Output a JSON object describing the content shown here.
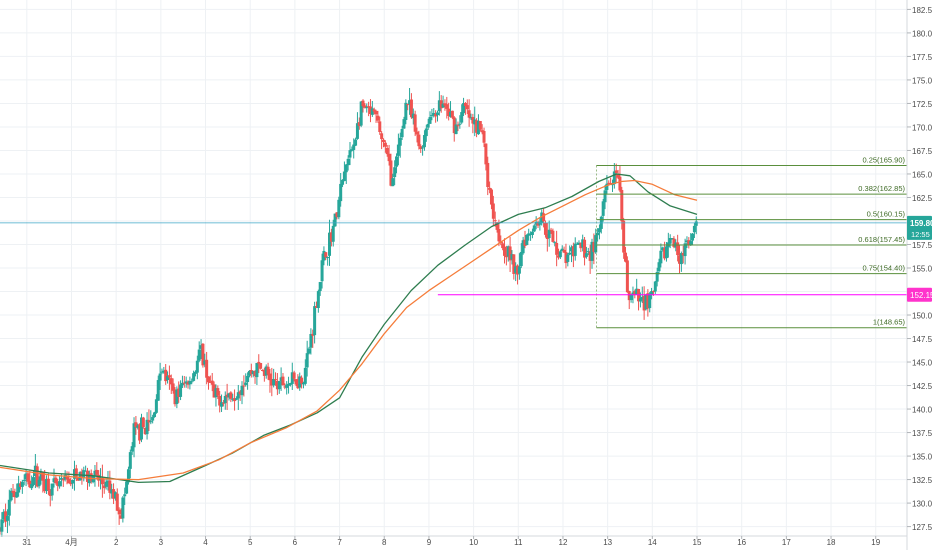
{
  "colors": {
    "grid": "#eef1f4",
    "up": "#26a69a",
    "down": "#ef5350",
    "axis_text": "#4a4a4a",
    "ma_fast": "#f57c3a",
    "ma_slow": "#2e7d4f",
    "fib": "#5a8f3c",
    "price_line": "#3fa7c7",
    "price_badge": "#26a69a",
    "level_line": "#ff00ff",
    "level_badge": "#ff33cc"
  },
  "chart_data": {
    "type": "candlestick",
    "y_range": [
      126.5,
      183.5
    ],
    "y_ticks": [
      "127.50",
      "130.00",
      "132.50",
      "135.00",
      "137.50",
      "140.00",
      "142.50",
      "145.00",
      "147.50",
      "150.00",
      "152.50",
      "155.00",
      "157.50",
      "160.00",
      "162.50",
      "165.00",
      "167.50",
      "170.00",
      "172.50",
      "175.00",
      "177.50",
      "180.00",
      "182.50"
    ],
    "x_range": [
      -0.6,
      19.7
    ],
    "x_ticks": [
      {
        "label": "31",
        "x": 0
      },
      {
        "label": "4月",
        "x": 1
      },
      {
        "label": "2",
        "x": 2
      },
      {
        "label": "3",
        "x": 3
      },
      {
        "label": "4",
        "x": 4
      },
      {
        "label": "5",
        "x": 5
      },
      {
        "label": "6",
        "x": 6
      },
      {
        "label": "7",
        "x": 7
      },
      {
        "label": "8",
        "x": 8
      },
      {
        "label": "9",
        "x": 9
      },
      {
        "label": "10",
        "x": 10
      },
      {
        "label": "11",
        "x": 11
      },
      {
        "label": "12",
        "x": 12
      },
      {
        "label": "13",
        "x": 13
      },
      {
        "label": "14",
        "x": 14
      },
      {
        "label": "15",
        "x": 15
      },
      {
        "label": "16",
        "x": 16
      },
      {
        "label": "17",
        "x": 17
      },
      {
        "label": "18",
        "x": 18
      },
      {
        "label": "19",
        "x": 19
      }
    ],
    "price_path": [
      [
        -0.6,
        127.2
      ],
      [
        -0.3,
        131.5
      ],
      [
        0.2,
        133.0
      ],
      [
        0.6,
        131.5
      ],
      [
        1.0,
        132.5
      ],
      [
        1.4,
        133.3
      ],
      [
        1.7,
        132.0
      ],
      [
        2.0,
        130.5
      ],
      [
        2.1,
        129.0
      ],
      [
        2.2,
        131.0
      ],
      [
        2.4,
        137.5
      ],
      [
        2.8,
        138.5
      ],
      [
        3.0,
        144.5
      ],
      [
        3.3,
        141.5
      ],
      [
        3.7,
        143.5
      ],
      [
        3.9,
        146.0
      ],
      [
        4.2,
        141.0
      ],
      [
        4.6,
        141.5
      ],
      [
        4.9,
        143.5
      ],
      [
        5.2,
        144.5
      ],
      [
        5.6,
        142.5
      ],
      [
        6.0,
        143.0
      ],
      [
        6.2,
        143.5
      ],
      [
        6.3,
        146.0
      ],
      [
        6.6,
        155.0
      ],
      [
        6.9,
        160.0
      ],
      [
        7.1,
        165.0
      ],
      [
        7.3,
        168.0
      ],
      [
        7.5,
        172.0
      ],
      [
        7.8,
        171.0
      ],
      [
        8.0,
        168.0
      ],
      [
        8.2,
        164.0
      ],
      [
        8.5,
        173.0
      ],
      [
        8.8,
        167.5
      ],
      [
        9.0,
        171.0
      ],
      [
        9.3,
        172.5
      ],
      [
        9.6,
        170.0
      ],
      [
        9.8,
        172.0
      ],
      [
        10.0,
        170.0
      ],
      [
        10.2,
        169.5
      ],
      [
        10.35,
        163.0
      ],
      [
        10.6,
        158.0
      ],
      [
        10.8,
        156.5
      ],
      [
        10.95,
        154.0
      ],
      [
        11.1,
        158.0
      ],
      [
        11.5,
        160.5
      ],
      [
        11.8,
        157.5
      ],
      [
        12.1,
        156.0
      ],
      [
        12.4,
        157.5
      ],
      [
        12.6,
        156.5
      ],
      [
        12.8,
        158.5
      ],
      [
        12.95,
        163.0
      ],
      [
        13.1,
        164.5
      ],
      [
        13.25,
        164.0
      ],
      [
        13.35,
        157.0
      ],
      [
        13.45,
        152.5
      ],
      [
        13.7,
        151.5
      ],
      [
        14.0,
        151.8
      ],
      [
        14.2,
        156.0
      ],
      [
        14.4,
        158.0
      ],
      [
        14.6,
        156.5
      ],
      [
        14.85,
        157.5
      ],
      [
        15.0,
        159.8
      ]
    ],
    "ma_fast": [
      [
        -0.6,
        133.8
      ],
      [
        0.5,
        133.0
      ],
      [
        1.5,
        132.6
      ],
      [
        2.5,
        132.5
      ],
      [
        3.5,
        133.2
      ],
      [
        4.3,
        134.6
      ],
      [
        5.0,
        136.4
      ],
      [
        5.8,
        138.0
      ],
      [
        6.5,
        139.8
      ],
      [
        7.0,
        142.0
      ],
      [
        7.5,
        144.8
      ],
      [
        8.0,
        148.0
      ],
      [
        8.5,
        150.8
      ],
      [
        9.0,
        152.6
      ],
      [
        9.5,
        154.2
      ],
      [
        10.0,
        155.8
      ],
      [
        10.5,
        157.4
      ],
      [
        11.0,
        159.0
      ],
      [
        11.5,
        160.4
      ],
      [
        12.0,
        161.6
      ],
      [
        12.5,
        162.8
      ],
      [
        13.0,
        163.8
      ],
      [
        13.3,
        164.2
      ],
      [
        13.6,
        164.3
      ],
      [
        14.0,
        163.9
      ],
      [
        14.5,
        162.8
      ],
      [
        15.0,
        162.2
      ]
    ],
    "ma_slow": [
      [
        -0.6,
        134.0
      ],
      [
        0.5,
        133.2
      ],
      [
        1.5,
        132.9
      ],
      [
        2.5,
        132.2
      ],
      [
        3.2,
        132.3
      ],
      [
        4.0,
        134.0
      ],
      [
        4.6,
        135.3
      ],
      [
        5.3,
        137.2
      ],
      [
        5.9,
        138.3
      ],
      [
        6.5,
        139.6
      ],
      [
        7.0,
        141.2
      ],
      [
        7.5,
        145.5
      ],
      [
        8.0,
        149.0
      ],
      [
        8.6,
        152.6
      ],
      [
        9.2,
        155.3
      ],
      [
        9.8,
        157.4
      ],
      [
        10.4,
        159.4
      ],
      [
        11.0,
        160.7
      ],
      [
        11.6,
        161.4
      ],
      [
        12.2,
        162.6
      ],
      [
        12.8,
        164.2
      ],
      [
        13.2,
        165.0
      ],
      [
        13.5,
        164.8
      ],
      [
        13.9,
        163.1
      ],
      [
        14.4,
        161.6
      ],
      [
        15.0,
        160.7
      ]
    ],
    "fib_levels": [
      {
        "label": "0.25(165.90)",
        "value": 165.9
      },
      {
        "label": "0.382(162.85)",
        "value": 162.85
      },
      {
        "label": "0.5(160.15)",
        "value": 160.15
      },
      {
        "label": "0.618(157.45)",
        "value": 157.45
      },
      {
        "label": "0.75(154.40)",
        "value": 154.4
      },
      {
        "label": "1(148.65)",
        "value": 148.65
      }
    ],
    "fib_x_range": [
      12.75,
      19.7
    ],
    "horizontal_level": {
      "value": 152.15,
      "label": "152.15",
      "x_start": 9.2
    },
    "current_price": {
      "value": 159.8,
      "label": "159.80",
      "countdown": "12:55"
    },
    "hidden_tick_label": "157.50"
  }
}
